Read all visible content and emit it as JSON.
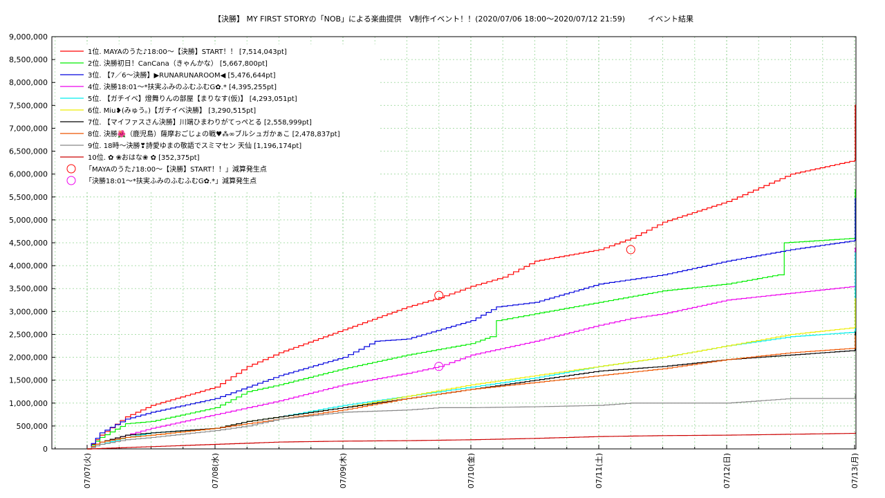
{
  "chart_data": {
    "type": "line",
    "title": "【決勝】 MY FIRST STORYの「NOB」による楽曲提供　V制作イベント！！(2020/07/06 18:00〜2020/07/12 21:59)　　　イベント結果",
    "xlabel": "",
    "ylabel": "",
    "ylim": [
      0,
      9000000
    ],
    "yticks": [
      "9,000,000",
      "8,500,000",
      "8,000,000",
      "7,500,000",
      "7,000,000",
      "6,500,000",
      "6,000,000",
      "5,500,000",
      "5,000,000",
      "4,500,000",
      "4,000,000",
      "3,500,000",
      "3,000,000",
      "2,500,000",
      "2,000,000",
      "1,500,000",
      "1,000,000",
      "500,000",
      "0"
    ],
    "xticks": [
      "07/07(火)",
      "07/08(水)",
      "07/09(木)",
      "07/10(金)",
      "07/11(土)",
      "07/12(日)",
      "07/13(月)"
    ],
    "x_range_days": [
      0,
      6.25
    ],
    "grid": true,
    "legend_position": "top-left",
    "series": [
      {
        "name": "1位. MAYAのうた♪18:00〜【決勝】START！！ [7,514,043pt]",
        "color": "#ff0000",
        "points": [
          [
            0,
            0
          ],
          [
            0.1,
            300000
          ],
          [
            0.3,
            700000
          ],
          [
            0.5,
            950000
          ],
          [
            1,
            1350000
          ],
          [
            1.25,
            1800000
          ],
          [
            1.5,
            2100000
          ],
          [
            2,
            2600000
          ],
          [
            2.5,
            3100000
          ],
          [
            2.75,
            3300000
          ],
          [
            3,
            3550000
          ],
          [
            3.25,
            3750000
          ],
          [
            3.5,
            4100000
          ],
          [
            4,
            4350000
          ],
          [
            4.25,
            4600000
          ],
          [
            4.5,
            4950000
          ],
          [
            5,
            5400000
          ],
          [
            5.25,
            5700000
          ],
          [
            5.5,
            6000000
          ],
          [
            6,
            6300000
          ],
          [
            6.35,
            6500000
          ],
          [
            6.5,
            6700000
          ],
          [
            6.7,
            6800000
          ],
          [
            6.8,
            7000000
          ],
          [
            6.85,
            7514043
          ],
          [
            6.95,
            7514043
          ]
        ]
      },
      {
        "name": "2位. 決勝初日！CanCana（きゃんかな） [5,667,800pt]",
        "color": "#00ee00",
        "points": [
          [
            0,
            0
          ],
          [
            0.1,
            250000
          ],
          [
            0.3,
            550000
          ],
          [
            0.5,
            600000
          ],
          [
            1,
            900000
          ],
          [
            1.25,
            1250000
          ],
          [
            1.5,
            1400000
          ],
          [
            2,
            1750000
          ],
          [
            2.5,
            2050000
          ],
          [
            3,
            2300000
          ],
          [
            3.15,
            2450000
          ],
          [
            3.2,
            2800000
          ],
          [
            3.5,
            2950000
          ],
          [
            4,
            3200000
          ],
          [
            4.5,
            3450000
          ],
          [
            5,
            3600000
          ],
          [
            5.4,
            3800000
          ],
          [
            5.45,
            4500000
          ],
          [
            6,
            4600000
          ],
          [
            6.5,
            4900000
          ],
          [
            6.7,
            5100000
          ],
          [
            6.75,
            5667800
          ],
          [
            6.95,
            5667800
          ]
        ]
      },
      {
        "name": "3位. 【7／6〜決勝】▶RUNARUNAROOM◀ [5,476,644pt]",
        "color": "#0000dd",
        "points": [
          [
            0,
            0
          ],
          [
            0.1,
            350000
          ],
          [
            0.3,
            650000
          ],
          [
            0.5,
            800000
          ],
          [
            1,
            1100000
          ],
          [
            1.25,
            1350000
          ],
          [
            1.5,
            1600000
          ],
          [
            2,
            2000000
          ],
          [
            2.25,
            2350000
          ],
          [
            2.5,
            2400000
          ],
          [
            3,
            2800000
          ],
          [
            3.2,
            3100000
          ],
          [
            3.5,
            3200000
          ],
          [
            4,
            3600000
          ],
          [
            4.25,
            3700000
          ],
          [
            4.5,
            3800000
          ],
          [
            5,
            4100000
          ],
          [
            5.5,
            4350000
          ],
          [
            6,
            4550000
          ],
          [
            6.5,
            4850000
          ],
          [
            6.7,
            4950000
          ],
          [
            6.75,
            5476644
          ],
          [
            6.95,
            5476644
          ]
        ]
      },
      {
        "name": "4位. 決勝18:01〜*扶実ふみのふむふむG✿.* [4,395,255pt]",
        "color": "#ee00ee",
        "points": [
          [
            0,
            0
          ],
          [
            0.1,
            150000
          ],
          [
            0.3,
            300000
          ],
          [
            0.5,
            450000
          ],
          [
            1,
            750000
          ],
          [
            1.25,
            900000
          ],
          [
            1.5,
            1050000
          ],
          [
            2,
            1400000
          ],
          [
            2.5,
            1650000
          ],
          [
            2.75,
            1800000
          ],
          [
            3,
            2050000
          ],
          [
            3.5,
            2350000
          ],
          [
            4,
            2700000
          ],
          [
            4.25,
            2850000
          ],
          [
            4.5,
            2950000
          ],
          [
            5,
            3250000
          ],
          [
            5.5,
            3400000
          ],
          [
            6,
            3550000
          ],
          [
            6.5,
            3800000
          ],
          [
            6.7,
            3900000
          ],
          [
            6.75,
            4395255
          ],
          [
            6.95,
            4395255
          ]
        ]
      },
      {
        "name": "5位. 【ガチイベ】燈舞りんの部屋【まりなす(仮)】 [4,293,051pt]",
        "color": "#00eeee",
        "points": [
          [
            0,
            0
          ],
          [
            0.1,
            100000
          ],
          [
            0.3,
            250000
          ],
          [
            0.5,
            350000
          ],
          [
            1,
            450000
          ],
          [
            1.25,
            600000
          ],
          [
            1.5,
            700000
          ],
          [
            2,
            950000
          ],
          [
            2.5,
            1150000
          ],
          [
            3,
            1350000
          ],
          [
            3.5,
            1550000
          ],
          [
            4,
            1800000
          ],
          [
            4.5,
            2000000
          ],
          [
            5,
            2250000
          ],
          [
            5.5,
            2450000
          ],
          [
            6,
            2550000
          ],
          [
            6.5,
            2700000
          ],
          [
            6.7,
            3100000
          ],
          [
            6.8,
            4293051
          ],
          [
            6.95,
            4293051
          ]
        ]
      },
      {
        "name": "6位. Miu❥(みゅう。)【ガチイベ決勝】 [3,290,515pt]",
        "color": "#eeee00",
        "points": [
          [
            0,
            0
          ],
          [
            0.1,
            150000
          ],
          [
            0.3,
            250000
          ],
          [
            0.5,
            300000
          ],
          [
            1,
            450000
          ],
          [
            1.25,
            600000
          ],
          [
            1.5,
            700000
          ],
          [
            2,
            900000
          ],
          [
            2.5,
            1150000
          ],
          [
            3,
            1400000
          ],
          [
            3.5,
            1600000
          ],
          [
            4,
            1800000
          ],
          [
            4.5,
            2000000
          ],
          [
            5,
            2250000
          ],
          [
            5.5,
            2500000
          ],
          [
            6,
            2650000
          ],
          [
            6.5,
            2850000
          ],
          [
            6.7,
            3000000
          ],
          [
            6.8,
            3290515
          ],
          [
            6.95,
            3290515
          ]
        ]
      },
      {
        "name": "7位. 【マイファスさん決勝】川端ひまわりがてっぺとる [2,558,999pt]",
        "color": "#000000",
        "points": [
          [
            0,
            0
          ],
          [
            0.1,
            150000
          ],
          [
            0.3,
            300000
          ],
          [
            0.5,
            350000
          ],
          [
            1,
            450000
          ],
          [
            1.25,
            600000
          ],
          [
            1.5,
            700000
          ],
          [
            2,
            900000
          ],
          [
            2.5,
            1100000
          ],
          [
            3,
            1300000
          ],
          [
            3.5,
            1500000
          ],
          [
            4,
            1700000
          ],
          [
            4.5,
            1800000
          ],
          [
            5,
            1950000
          ],
          [
            5.5,
            2050000
          ],
          [
            6,
            2150000
          ],
          [
            6.5,
            2300000
          ],
          [
            6.7,
            2400000
          ],
          [
            6.8,
            2558999
          ],
          [
            6.95,
            2558999
          ]
        ]
      },
      {
        "name": "8位. 決勝🌺（鹿児島）薩摩おごじょの戦♥⁂∞ブルシュガかぁこ [2,478,837pt]",
        "color": "#ee5500",
        "points": [
          [
            0,
            0
          ],
          [
            0.1,
            150000
          ],
          [
            0.3,
            250000
          ],
          [
            0.5,
            300000
          ],
          [
            1,
            450000
          ],
          [
            1.25,
            550000
          ],
          [
            1.5,
            650000
          ],
          [
            2,
            850000
          ],
          [
            2.5,
            1100000
          ],
          [
            3,
            1300000
          ],
          [
            3.5,
            1450000
          ],
          [
            4,
            1600000
          ],
          [
            4.5,
            1750000
          ],
          [
            5,
            1950000
          ],
          [
            5.5,
            2100000
          ],
          [
            6,
            2200000
          ],
          [
            6.5,
            2350000
          ],
          [
            6.7,
            2400000
          ],
          [
            6.8,
            2478837
          ],
          [
            6.95,
            2478837
          ]
        ]
      },
      {
        "name": "9位. 18時〜決勝❣詩愛ゆまの敬語でスミマセン 天仙 [1,196,174pt]",
        "color": "#888888",
        "points": [
          [
            0,
            0
          ],
          [
            0.1,
            100000
          ],
          [
            0.3,
            200000
          ],
          [
            0.5,
            250000
          ],
          [
            1,
            400000
          ],
          [
            1.25,
            500000
          ],
          [
            1.5,
            650000
          ],
          [
            2,
            800000
          ],
          [
            2.5,
            850000
          ],
          [
            2.75,
            900000
          ],
          [
            3,
            900000
          ],
          [
            3.5,
            920000
          ],
          [
            4,
            950000
          ],
          [
            4.25,
            1000000
          ],
          [
            5,
            1000000
          ],
          [
            5.5,
            1100000
          ],
          [
            6,
            1100000
          ],
          [
            6.5,
            1150000
          ],
          [
            6.7,
            1196174
          ],
          [
            6.95,
            1196174
          ]
        ]
      },
      {
        "name": "10位. ✿ ❀おはな❀ ✿ [352,375pt]",
        "color": "#cc0000",
        "points": [
          [
            0,
            0
          ],
          [
            0.5,
            50000
          ],
          [
            1,
            100000
          ],
          [
            1.5,
            150000
          ],
          [
            2,
            170000
          ],
          [
            2.5,
            180000
          ],
          [
            3,
            200000
          ],
          [
            3.5,
            230000
          ],
          [
            4,
            270000
          ],
          [
            4.5,
            290000
          ],
          [
            5,
            300000
          ],
          [
            5.5,
            320000
          ],
          [
            6,
            340000
          ],
          [
            6.5,
            352375
          ],
          [
            6.95,
            352375
          ]
        ]
      }
    ],
    "markers": [
      {
        "name": "「MAYAのうた♪18:00〜【決勝】START！！」減算発生点",
        "color": "#ff0000",
        "points": [
          [
            2.75,
            3350000
          ],
          [
            4.25,
            4350000
          ],
          [
            6.35,
            6300000
          ]
        ]
      },
      {
        "name": "「決勝18:01〜*扶実ふみのふむふむG✿.*」減算発生点",
        "color": "#ee00ee",
        "points": [
          [
            2.75,
            1800000
          ]
        ]
      }
    ]
  }
}
